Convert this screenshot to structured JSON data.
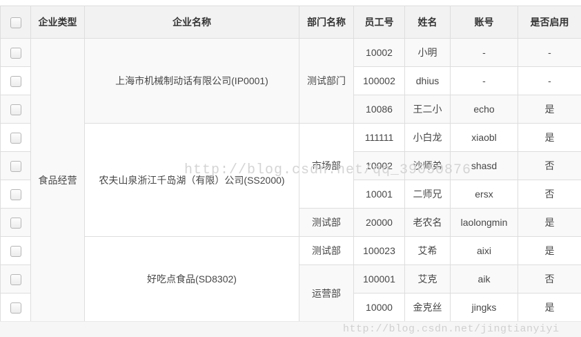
{
  "header": {
    "columns": [
      "企业类型",
      "企业名称",
      "部门名称",
      "员工号",
      "姓名",
      "账号",
      "是否启用"
    ]
  },
  "table": {
    "enterprise_type": "食品经营",
    "groups": [
      {
        "company": "上海市机械制动话有限公司(IP0001)",
        "departments": [
          {
            "name": "测试部门",
            "employees": [
              {
                "emp_no": "10002",
                "name": "小明",
                "account": "-",
                "enabled": "-"
              },
              {
                "emp_no": "100002",
                "name": "dhius",
                "account": "-",
                "enabled": "-"
              },
              {
                "emp_no": "10086",
                "name": "王二小",
                "account": "echo",
                "enabled": "是"
              }
            ]
          }
        ]
      },
      {
        "company": "农夫山泉浙江千岛湖（有限）公司(SS2000)",
        "departments": [
          {
            "name": "市场部",
            "employees": [
              {
                "emp_no": "111111",
                "name": "小白龙",
                "account": "xiaobl",
                "enabled": "是"
              },
              {
                "emp_no": "10002",
                "name": "沙师弟",
                "account": "shasd",
                "enabled": "否"
              },
              {
                "emp_no": "10001",
                "name": "二师兄",
                "account": "ersx",
                "enabled": "否"
              }
            ]
          },
          {
            "name": "测试部",
            "employees": [
              {
                "emp_no": "20000",
                "name": "老农名",
                "account": "laolongmin",
                "enabled": "是"
              }
            ]
          }
        ]
      },
      {
        "company": "好吃点食品(SD8302)",
        "departments": [
          {
            "name": "测试部",
            "employees": [
              {
                "emp_no": "100023",
                "name": "艾希",
                "account": "aixi",
                "enabled": "是"
              }
            ]
          },
          {
            "name": "运营部",
            "employees": [
              {
                "emp_no": "100001",
                "name": "艾克",
                "account": "aik",
                "enabled": "否"
              },
              {
                "emp_no": "10000",
                "name": "金克丝",
                "account": "jingks",
                "enabled": "是"
              }
            ]
          }
        ]
      }
    ]
  },
  "watermarks": {
    "middle": "http://blog.csdn.net/qq_39050876",
    "bottom": "http://blog.csdn.net/jingtianyiyi"
  },
  "colors": {
    "header_bg": "#f2f2f2",
    "border": "#dddddd",
    "stripe": "#f9f9f9",
    "watermark": "#d4d4d4"
  }
}
